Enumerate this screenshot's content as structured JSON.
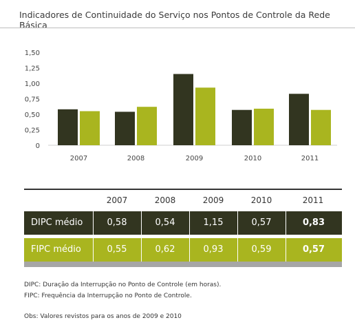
{
  "title": "Indicadores de Continuidade do Serviço nos Pontos de Controle da Rede Básica",
  "colors": {
    "dipc": "#323520",
    "fipc": "#a9b51f",
    "separator": "#a6a6a6"
  },
  "chart_data": {
    "type": "bar",
    "categories": [
      "2007",
      "2008",
      "2009",
      "2010",
      "2011"
    ],
    "series": [
      {
        "name": "DIPC médio",
        "values": [
          0.58,
          0.54,
          1.15,
          0.57,
          0.83
        ]
      },
      {
        "name": "FIPC médio",
        "values": [
          0.55,
          0.62,
          0.93,
          0.59,
          0.57
        ]
      }
    ],
    "yticks": [
      "1,50",
      "1,25",
      "1,00",
      "0,75",
      "0,50",
      "0,25",
      "0"
    ],
    "ylim": [
      0,
      1.5
    ],
    "grid": false
  },
  "table": {
    "headers": [
      "2007",
      "2008",
      "2009",
      "2010",
      "2011"
    ],
    "rows": [
      {
        "label": "DIPC médio",
        "values": [
          "0,58",
          "0,54",
          "1,15",
          "0,57",
          "0,83"
        ]
      },
      {
        "label": "FIPC médio",
        "values": [
          "0,55",
          "0,62",
          "0,93",
          "0,59",
          "0,57"
        ]
      }
    ]
  },
  "notes": [
    "DIPC: Duração da Interrupção no Ponto de Controle (em horas).",
    "FIPC: Frequência da Interrupção no Ponto de Controle.",
    "Obs: Valores revistos para os anos de 2009 e 2010"
  ]
}
